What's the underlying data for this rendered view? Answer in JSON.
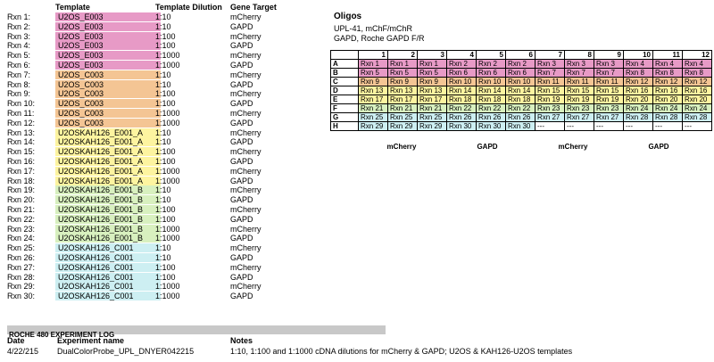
{
  "headers": {
    "template": "Template",
    "dilution": "Template Dilution",
    "gene": "Gene Target"
  },
  "rows": [
    {
      "rxn": "Rxn 1:",
      "template": "U2OS_E003",
      "dilution": "1:10",
      "gene": "mCherry",
      "color": "#e79ac6"
    },
    {
      "rxn": "Rxn 2:",
      "template": "U2OS_E003",
      "dilution": "1:10",
      "gene": "GAPD",
      "color": "#e79ac6"
    },
    {
      "rxn": "Rxn 3:",
      "template": "U2OS_E003",
      "dilution": "1:100",
      "gene": "mCherry",
      "color": "#e79ac6"
    },
    {
      "rxn": "Rxn 4:",
      "template": "U2OS_E003",
      "dilution": "1:100",
      "gene": "GAPD",
      "color": "#e79ac6"
    },
    {
      "rxn": "Rxn 5:",
      "template": "U2OS_E003",
      "dilution": "1:1000",
      "gene": "mCherry",
      "color": "#e79ac6"
    },
    {
      "rxn": "Rxn 6:",
      "template": "U2OS_E003",
      "dilution": "1:1000",
      "gene": "GAPD",
      "color": "#e79ac6"
    },
    {
      "rxn": "Rxn 7:",
      "template": "U2OS_C003",
      "dilution": "1:10",
      "gene": "mCherry",
      "color": "#f4c594"
    },
    {
      "rxn": "Rxn 8:",
      "template": "U2OS_C003",
      "dilution": "1:10",
      "gene": "GAPD",
      "color": "#f4c594"
    },
    {
      "rxn": "Rxn 9:",
      "template": "U2OS_C003",
      "dilution": "1:100",
      "gene": "mCherry",
      "color": "#f4c594"
    },
    {
      "rxn": "Rxn 10:",
      "template": "U2OS_C003",
      "dilution": "1:100",
      "gene": "GAPD",
      "color": "#f4c594"
    },
    {
      "rxn": "Rxn 11:",
      "template": "U2OS_C003",
      "dilution": "1:1000",
      "gene": "mCherry",
      "color": "#f4c594"
    },
    {
      "rxn": "Rxn 12:",
      "template": "U2OS_C003",
      "dilution": "1:1000",
      "gene": "GAPD",
      "color": "#f4c594"
    },
    {
      "rxn": "Rxn 13:",
      "template": "U2OSKAH126_E001_A",
      "dilution": "1:10",
      "gene": "mCherry",
      "color": "#fdf4a0"
    },
    {
      "rxn": "Rxn 14:",
      "template": "U2OSKAH126_E001_A",
      "dilution": "1:10",
      "gene": "GAPD",
      "color": "#fdf4a0"
    },
    {
      "rxn": "Rxn 15:",
      "template": "U2OSKAH126_E001_A",
      "dilution": "1:100",
      "gene": "mCherry",
      "color": "#fdf4a0"
    },
    {
      "rxn": "Rxn 16:",
      "template": "U2OSKAH126_E001_A",
      "dilution": "1:100",
      "gene": "GAPD",
      "color": "#fdf4a0"
    },
    {
      "rxn": "Rxn 17:",
      "template": "U2OSKAH126_E001_A",
      "dilution": "1:1000",
      "gene": "mCherry",
      "color": "#fdf4a0"
    },
    {
      "rxn": "Rxn 18:",
      "template": "U2OSKAH126_E001_A",
      "dilution": "1:1000",
      "gene": "GAPD",
      "color": "#fdf4a0"
    },
    {
      "rxn": "Rxn 19:",
      "template": "U2OSKAH126_E001_B",
      "dilution": "1:10",
      "gene": "mCherry",
      "color": "#d8f0bf"
    },
    {
      "rxn": "Rxn 20:",
      "template": "U2OSKAH126_E001_B",
      "dilution": "1:10",
      "gene": "GAPD",
      "color": "#d8f0bf"
    },
    {
      "rxn": "Rxn 21:",
      "template": "U2OSKAH126_E001_B",
      "dilution": "1:100",
      "gene": "mCherry",
      "color": "#d8f0bf"
    },
    {
      "rxn": "Rxn 22:",
      "template": "U2OSKAH126_E001_B",
      "dilution": "1:100",
      "gene": "GAPD",
      "color": "#d8f0bf"
    },
    {
      "rxn": "Rxn 23:",
      "template": "U2OSKAH126_E001_B",
      "dilution": "1:1000",
      "gene": "mCherry",
      "color": "#d8f0bf"
    },
    {
      "rxn": "Rxn 24:",
      "template": "U2OSKAH126_E001_B",
      "dilution": "1:1000",
      "gene": "GAPD",
      "color": "#d8f0bf"
    },
    {
      "rxn": "Rxn 25:",
      "template": "U2OSKAH126_C001",
      "dilution": "1:10",
      "gene": "mCherry",
      "color": "#cdeff2"
    },
    {
      "rxn": "Rxn 26:",
      "template": "U2OSKAH126_C001",
      "dilution": "1:10",
      "gene": "GAPD",
      "color": "#cdeff2"
    },
    {
      "rxn": "Rxn 27:",
      "template": "U2OSKAH126_C001",
      "dilution": "1:100",
      "gene": "mCherry",
      "color": "#cdeff2"
    },
    {
      "rxn": "Rxn 28:",
      "template": "U2OSKAH126_C001",
      "dilution": "1:100",
      "gene": "GAPD",
      "color": "#cdeff2"
    },
    {
      "rxn": "Rxn 29:",
      "template": "U2OSKAH126_C001",
      "dilution": "1:1000",
      "gene": "mCherry",
      "color": "#cdeff2"
    },
    {
      "rxn": "Rxn 30:",
      "template": "U2OSKAH126_C001",
      "dilution": "1:1000",
      "gene": "GAPD",
      "color": "#cdeff2"
    }
  ],
  "oligos": {
    "title": "Oligos",
    "line1": "UPL-41, mChF/mChR",
    "line2": "GAPD, Roche GAPD F/R"
  },
  "plate": {
    "columns": [
      "1",
      "2",
      "3",
      "4",
      "5",
      "6",
      "7",
      "8",
      "9",
      "10",
      "11",
      "12"
    ],
    "rows": [
      {
        "label": "A",
        "color": "#e79ac6",
        "cells": [
          "Rxn 1",
          "Rxn 1",
          "Rxn 1",
          "Rxn 2",
          "Rxn 2",
          "Rxn 2",
          "Rxn 3",
          "Rxn 3",
          "Rxn 3",
          "Rxn 4",
          "Rxn 4",
          "Rxn 4"
        ]
      },
      {
        "label": "B",
        "color": "#e79ac6",
        "cells": [
          "Rxn 5",
          "Rxn 5",
          "Rxn 5",
          "Rxn 6",
          "Rxn 6",
          "Rxn 6",
          "Rxn 7",
          "Rxn 7",
          "Rxn 7",
          "Rxn 8",
          "Rxn 8",
          "Rxn 8"
        ]
      },
      {
        "label": "C",
        "color": "#f4c594",
        "cells": [
          "Rxn 9",
          "Rxn 9",
          "Rxn 9",
          "Rxn 10",
          "Rxn 10",
          "Rxn 10",
          "Rxn 11",
          "Rxn 11",
          "Rxn 11",
          "Rxn 12",
          "Rxn 12",
          "Rxn 12"
        ]
      },
      {
        "label": "D",
        "color": "#fdf4a0",
        "cells": [
          "Rxn 13",
          "Rxn 13",
          "Rxn 13",
          "Rxn 14",
          "Rxn 14",
          "Rxn 14",
          "Rxn 15",
          "Rxn 15",
          "Rxn 15",
          "Rxn 16",
          "Rxn 16",
          "Rxn 16"
        ]
      },
      {
        "label": "E",
        "color": "#fdf4a0",
        "cells": [
          "Rxn 17",
          "Rxn 17",
          "Rxn 17",
          "Rxn 18",
          "Rxn 18",
          "Rxn 18",
          "Rxn 19",
          "Rxn 19",
          "Rxn 19",
          "Rxn 20",
          "Rxn 20",
          "Rxn 20"
        ]
      },
      {
        "label": "F",
        "color": "#d8f0bf",
        "cells": [
          "Rxn 21",
          "Rxn 21",
          "Rxn 21",
          "Rxn 22",
          "Rxn 22",
          "Rxn 22",
          "Rxn 23",
          "Rxn 23",
          "Rxn 23",
          "Rxn 24",
          "Rxn 24",
          "Rxn 24"
        ]
      },
      {
        "label": "G",
        "color": "#cdeff2",
        "cells": [
          "Rxn 25",
          "Rxn 25",
          "Rxn 25",
          "Rxn 26",
          "Rxn 26",
          "Rxn 26",
          "Rxn 27",
          "Rxn 27",
          "Rxn 27",
          "Rxn 28",
          "Rxn 28",
          "Rxn 28"
        ]
      },
      {
        "label": "H",
        "color": "#cdeff2",
        "cells": [
          "Rxn 29",
          "Rxn 29",
          "Rxn 29",
          "Rxn 30",
          "Rxn 30",
          "Rxn 30",
          "---",
          "---",
          "---",
          "---",
          "---",
          "---"
        ]
      }
    ],
    "gene_labels": [
      "mCherry",
      "GAPD",
      "mCherry",
      "GAPD"
    ]
  },
  "log": {
    "title": "ROCHE 480 EXPERIMENT LOG",
    "col_date": "Date",
    "col_name": "Experiment name",
    "col_notes": "Notes",
    "date": "4/22/215",
    "name": "DualColorProbe_UPL_DNYER042215",
    "notes": "1:10, 1:100 and 1:1000 cDNA dilutions for mCherry & GAPD; U2OS & KAH126-U2OS templates"
  }
}
